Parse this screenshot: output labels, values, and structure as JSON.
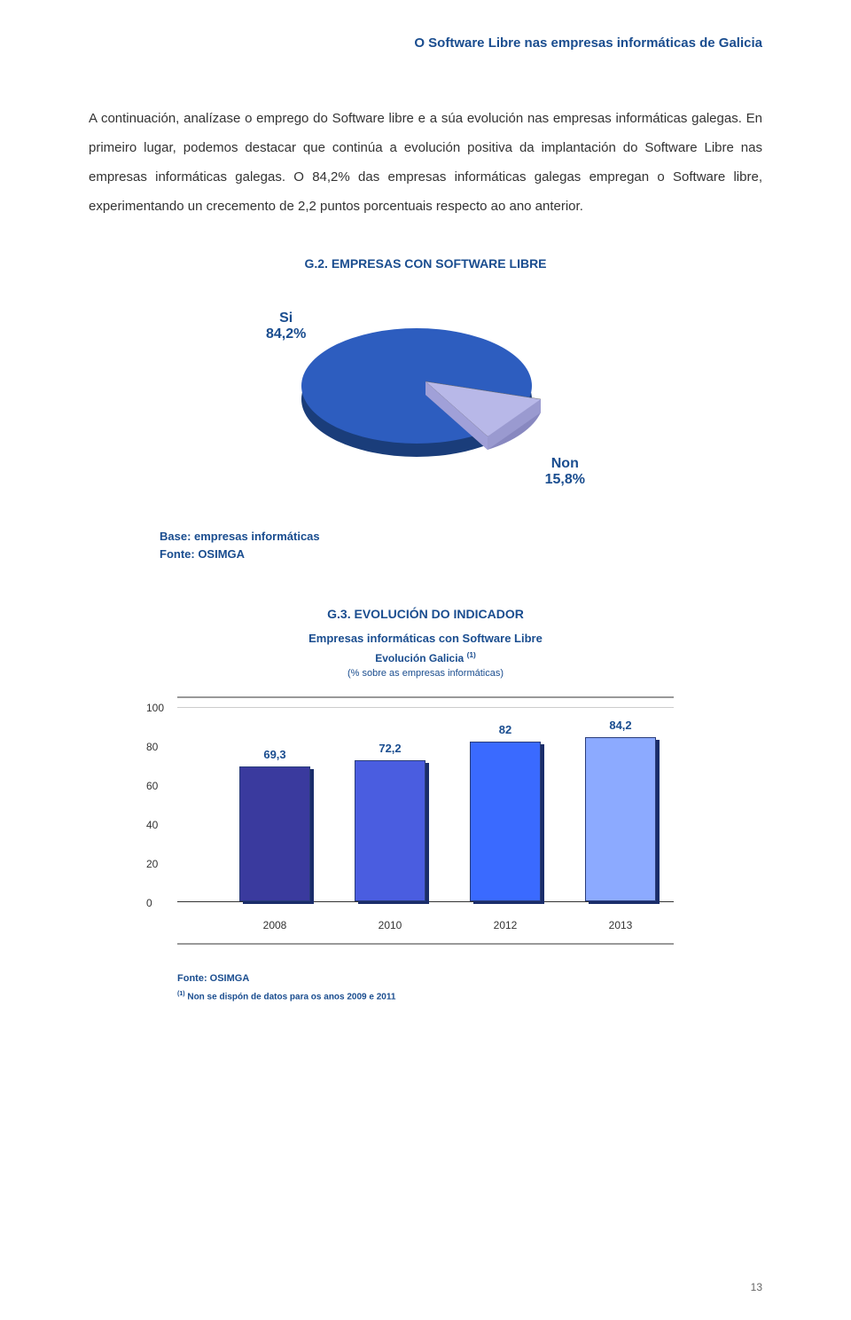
{
  "header": {
    "title": "O Software Libre nas empresas informáticas de Galicia"
  },
  "paragraph": "A continuación, analízase o emprego do Software libre e a súa evolución nas empresas informáticas galegas. En primeiro lugar, podemos destacar que continúa a evolución positiva da implantación do Software Libre nas empresas informáticas galegas. O 84,2% das empresas informáticas galegas empregan o Software libre, experimentando un crecemento de 2,2 puntos porcentuais respecto ao ano anterior.",
  "pie_chart": {
    "title": "G.2. EMPRESAS CON SOFTWARE LIBRE",
    "slices": [
      {
        "label": "Si",
        "value": "84,2%",
        "color": "#2d5dbf",
        "color_dark": "#1a3d7a",
        "percent": 84.2
      },
      {
        "label": "Non",
        "value": "15,8%",
        "color": "#b8b8e8",
        "color_dark": "#8888c0",
        "percent": 15.8
      }
    ],
    "base_text": "Base: empresas informáticas",
    "fonte_text": "Fonte: OSIMGA"
  },
  "bar_chart": {
    "title": "G.3. EVOLUCIÓN DO INDICADOR",
    "subtitle": "Empresas informáticas con Software Libre",
    "subtitle2_prefix": "Evolución Galicia ",
    "subtitle2_sup": "(1)",
    "note": "(% sobre as empresas informáticas)",
    "ylim": [
      0,
      100
    ],
    "ytick_step": 20,
    "yticks": [
      "0",
      "20",
      "40",
      "60",
      "80",
      "100"
    ],
    "bars": [
      {
        "year": "2008",
        "value": 69.3,
        "label": "69,3",
        "color": "#3a3a9e"
      },
      {
        "year": "2010",
        "value": 72.2,
        "label": "72,2",
        "color": "#4a5de0"
      },
      {
        "year": "2012",
        "value": 82,
        "label": "82",
        "color": "#3a6aff"
      },
      {
        "year": "2013",
        "value": 84.2,
        "label": "84,2",
        "color": "#8caaff"
      }
    ],
    "fonte": "Fonte: OSIMGA",
    "footnote_sup": "(1)",
    "footnote": " Non se dispón de datos para os anos 2009 e 2011"
  },
  "page_number": "13"
}
